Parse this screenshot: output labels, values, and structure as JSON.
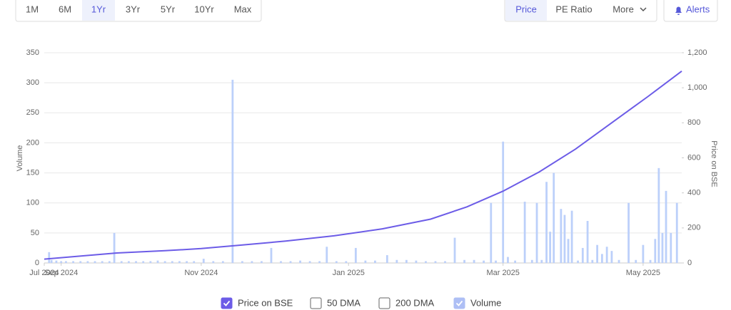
{
  "toolbar": {
    "ranges": [
      "1M",
      "6M",
      "1Yr",
      "3Yr",
      "5Yr",
      "10Yr",
      "Max"
    ],
    "active_range": 2,
    "views": [
      "Price",
      "PE Ratio",
      "More"
    ],
    "active_view": 0,
    "alerts": "Alerts"
  },
  "chart_data": {
    "type": "bar-line",
    "ylabel": "Volume",
    "y2label": "Price on BSE",
    "xlim": [
      0,
      264
    ],
    "xticks": [
      {
        "value": 0,
        "label": "Jul 2024"
      },
      {
        "value": 7,
        "label": "Sep 2024"
      },
      {
        "value": 65,
        "label": "Nov 2024"
      },
      {
        "value": 126,
        "label": "Jan 2025"
      },
      {
        "value": 190,
        "label": "Mar 2025"
      },
      {
        "value": 248,
        "label": "May 2025"
      }
    ],
    "ylim": [
      0,
      350
    ],
    "yticks": [
      0,
      50,
      100,
      150,
      200,
      250,
      300,
      350
    ],
    "y2lim": [
      0,
      1200
    ],
    "y2ticks": [
      0,
      200,
      400,
      600,
      800,
      {
        "value": 1000,
        "label": "1,000"
      },
      {
        "value": 1200,
        "label": "1,200"
      }
    ],
    "grid": true,
    "series": [
      {
        "name": "Price on BSE",
        "color": "#6c5ce7",
        "kind": "line",
        "axis": "y2",
        "checked": true,
        "x": [
          0,
          20,
          30,
          50,
          65,
          80,
          100,
          120,
          140,
          160,
          175,
          190,
          205,
          220,
          235,
          250,
          264
        ],
        "values": [
          22,
          45,
          57,
          70,
          82,
          100,
          125,
          155,
          195,
          250,
          320,
          410,
          520,
          650,
          800,
          950,
          1095
        ]
      },
      {
        "name": "Volume",
        "color": "#bcd0fa",
        "kind": "bar",
        "checked": true,
        "x": [
          2,
          3,
          5,
          7,
          9,
          12,
          15,
          18,
          21,
          24,
          27,
          29,
          32,
          35,
          38,
          41,
          44,
          47,
          50,
          53,
          56,
          59,
          62,
          66,
          70,
          74,
          78,
          82,
          86,
          90,
          94,
          98,
          102,
          106,
          110,
          114,
          117,
          121,
          125,
          129,
          133,
          137,
          142,
          146,
          150,
          154,
          158,
          162,
          166,
          170,
          174,
          178,
          182,
          185,
          187,
          190,
          192,
          195,
          199,
          202,
          204,
          206,
          208,
          209.5,
          211,
          214,
          215.5,
          217,
          218.5,
          221,
          223,
          225,
          227,
          229,
          231,
          233,
          235,
          238,
          242,
          245,
          248,
          251,
          253,
          254.5,
          256,
          257.5,
          259.5,
          262
        ],
        "values": [
          18,
          5,
          4,
          3,
          3,
          3,
          3,
          3,
          3,
          3,
          3,
          50,
          3,
          3,
          3,
          3,
          3,
          4,
          3,
          3,
          3,
          3,
          3,
          7,
          3,
          3,
          305,
          3,
          3,
          3,
          25,
          3,
          3,
          4,
          3,
          3,
          27,
          3,
          3,
          25,
          4,
          4,
          13,
          5,
          5,
          4,
          3,
          3,
          3,
          42,
          5,
          5,
          4,
          100,
          4,
          202,
          10,
          4,
          102,
          5,
          100,
          5,
          135,
          52,
          150,
          90,
          80,
          40,
          87,
          4,
          25,
          70,
          5,
          30,
          15,
          27,
          20,
          5,
          100,
          5,
          30,
          5,
          40,
          158,
          50,
          120,
          50,
          100
        ]
      }
    ],
    "inactive_series": [
      "50 DMA",
      "200 DMA"
    ]
  }
}
